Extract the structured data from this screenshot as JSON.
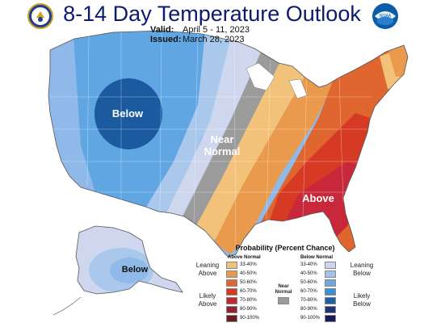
{
  "title": "8-14 Day Temperature Outlook",
  "valid_label": "Valid:",
  "valid_value": "April 5 - 11, 2023",
  "issued_label": "Issued:",
  "issued_value": "March 28, 2023",
  "noaa_text": "NOAA",
  "map_labels": {
    "below_conus": "Below",
    "near_normal_1": "Near",
    "near_normal_2": "Normal",
    "above": "Above",
    "below_alaska": "Below"
  },
  "legend": {
    "title": "Probability (Percent Chance)",
    "above_header": "Above Normal",
    "below_header": "Below Normal",
    "near_label_1": "Near",
    "near_label_2": "Normal",
    "leaning_above_1": "Leaning",
    "leaning_above_2": "Above",
    "likely_above_1": "Likely",
    "likely_above_2": "Above",
    "leaning_below_1": "Leaning",
    "leaning_below_2": "Below",
    "likely_below_1": "Likely",
    "likely_below_2": "Below",
    "ranges": [
      "33-40%",
      "40-50%",
      "50-60%",
      "60-70%",
      "70-80%",
      "80-90%",
      "90-100%"
    ],
    "above_colors": [
      "#f2c27b",
      "#e99a4c",
      "#e0662f",
      "#d63a25",
      "#c2272d",
      "#962029",
      "#6b1a1e"
    ],
    "below_colors": [
      "#cdd6ee",
      "#a3c3e8",
      "#6fa8e0",
      "#3d8fd6",
      "#1f5ea8",
      "#20357a",
      "#1a1a5a"
    ],
    "near_color": "#9b9b9b"
  }
}
